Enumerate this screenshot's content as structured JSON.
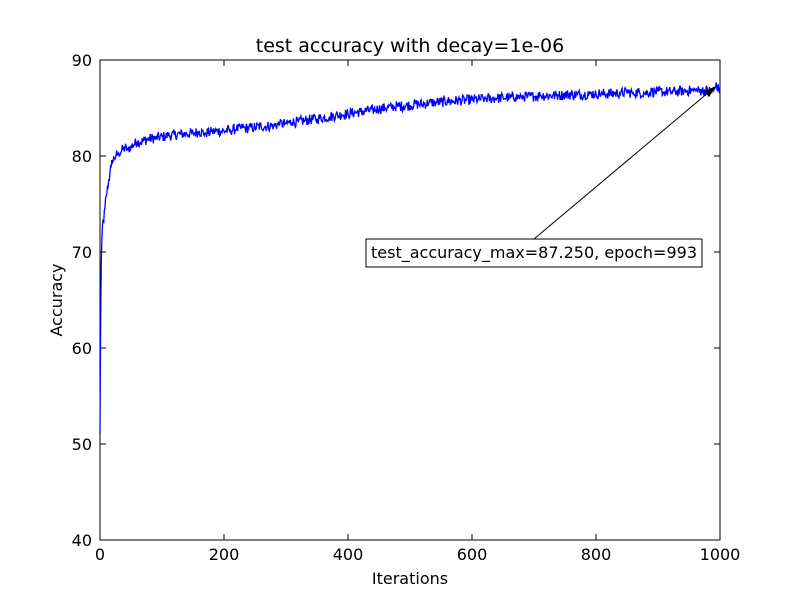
{
  "chart_data": {
    "type": "line",
    "title": "test accuracy with decay=1e-06",
    "xlabel": "Iterations",
    "ylabel": "Accuracy",
    "xlim": [
      0,
      1000
    ],
    "ylim": [
      40,
      90
    ],
    "xticks": [
      0,
      200,
      400,
      600,
      800,
      1000
    ],
    "yticks": [
      40,
      50,
      60,
      70,
      80,
      90
    ],
    "grid": false,
    "legend": "none",
    "series": [
      {
        "color": "#0000ff",
        "x": [
          0,
          1,
          2,
          3,
          4,
          5,
          6,
          8,
          10,
          12,
          14,
          16,
          18,
          20,
          23,
          26,
          30,
          35,
          40,
          45,
          50,
          55,
          60,
          65,
          70,
          80,
          90,
          100,
          110,
          120,
          130,
          140,
          150,
          160,
          170,
          180,
          190,
          200,
          210,
          220,
          230,
          240,
          250,
          260,
          270,
          280,
          290,
          300,
          310,
          320,
          330,
          340,
          350,
          360,
          370,
          380,
          390,
          400,
          410,
          420,
          430,
          440,
          450,
          460,
          470,
          480,
          490,
          500,
          510,
          520,
          530,
          540,
          550,
          560,
          570,
          580,
          590,
          600,
          610,
          620,
          630,
          640,
          650,
          660,
          670,
          680,
          690,
          700,
          710,
          720,
          730,
          740,
          750,
          760,
          770,
          780,
          790,
          800,
          810,
          820,
          830,
          840,
          850,
          860,
          870,
          880,
          890,
          900,
          910,
          920,
          930,
          940,
          950,
          960,
          970,
          980,
          990,
          993,
          1000
        ],
        "y": [
          51.0,
          62.5,
          68.8,
          71.2,
          72.8,
          73.4,
          73.0,
          74.6,
          75.8,
          76.8,
          77.5,
          78.2,
          78.9,
          79.3,
          79.8,
          80.1,
          80.3,
          80.6,
          80.8,
          80.7,
          81.0,
          81.2,
          81.5,
          81.4,
          81.6,
          81.8,
          81.9,
          82.0,
          82.1,
          82.2,
          82.3,
          82.3,
          82.4,
          82.5,
          82.4,
          82.5,
          82.6,
          82.6,
          82.7,
          82.8,
          82.9,
          82.9,
          83.0,
          83.1,
          83.1,
          83.2,
          83.3,
          83.4,
          83.5,
          83.6,
          83.7,
          83.8,
          83.9,
          84.0,
          84.1,
          84.2,
          84.3,
          84.4,
          84.5,
          84.6,
          84.7,
          84.8,
          84.9,
          85.0,
          85.1,
          85.2,
          85.2,
          85.3,
          85.4,
          85.4,
          85.5,
          85.6,
          85.6,
          85.7,
          85.7,
          85.8,
          85.8,
          85.9,
          85.9,
          86.0,
          86.0,
          86.0,
          86.1,
          86.1,
          86.1,
          86.2,
          86.2,
          86.2,
          86.3,
          86.3,
          86.3,
          86.3,
          86.4,
          86.4,
          86.4,
          86.4,
          86.5,
          86.5,
          86.5,
          86.5,
          86.5,
          86.6,
          86.6,
          86.6,
          86.6,
          86.6,
          86.7,
          86.7,
          86.7,
          86.7,
          86.7,
          86.8,
          86.8,
          86.8,
          86.8,
          86.8,
          86.8,
          87.25,
          86.8
        ]
      }
    ],
    "annotation": {
      "text": "test_accuracy_max=87.250, epoch=993",
      "point": [
        993,
        87.25
      ],
      "text_anchor": [
        700,
        70
      ]
    }
  }
}
